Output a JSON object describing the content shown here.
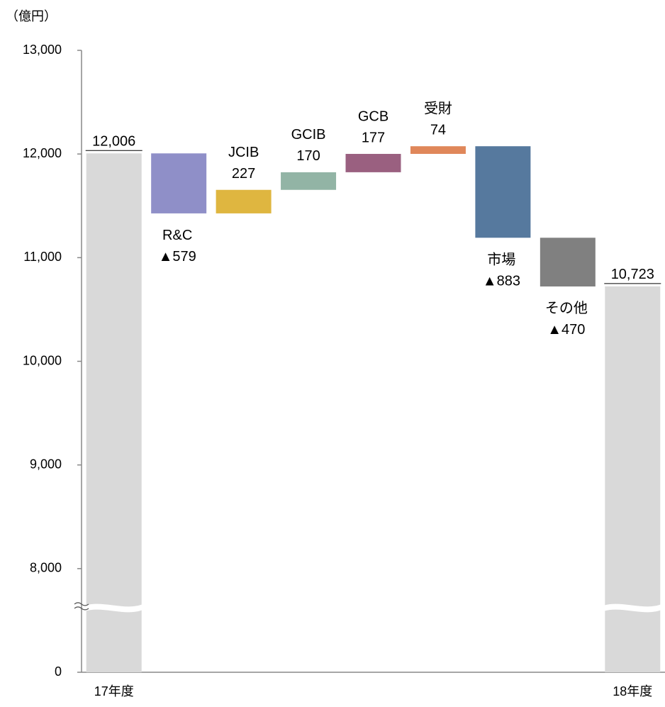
{
  "chart_data": {
    "type": "waterfall",
    "unit": "（億円）",
    "categories": [
      "17年度",
      "R&C",
      "JCIB",
      "GCIB",
      "GCB",
      "受財",
      "市場",
      "その他",
      "18年度"
    ],
    "values": [
      12006,
      -579,
      227,
      170,
      177,
      74,
      -883,
      -470,
      10723
    ],
    "value_labels": [
      "12,006",
      "▲579",
      "227",
      "170",
      "177",
      "74",
      "▲883",
      "▲470",
      "10,723"
    ],
    "measure": [
      "total",
      "relative",
      "relative",
      "relative",
      "relative",
      "relative",
      "relative",
      "relative",
      "total"
    ],
    "colors": [
      "#d9d9d9",
      "#8f8fc8",
      "#dfb640",
      "#92b4a5",
      "#9a6080",
      "#e0875a",
      "#56799e",
      "#808080",
      "#d9d9d9"
    ],
    "ylim": [
      0,
      13000
    ],
    "yticks": [
      0,
      {
        "value": 8000,
        "label": "8,000"
      },
      {
        "value": 9000,
        "label": "9,000"
      },
      {
        "value": 10000,
        "label": "10,000"
      },
      {
        "value": 11000,
        "label": "11,000"
      },
      {
        "value": 12000,
        "label": "12,000"
      },
      {
        "value": 13000,
        "label": "13,000"
      }
    ],
    "axis_break": true
  }
}
